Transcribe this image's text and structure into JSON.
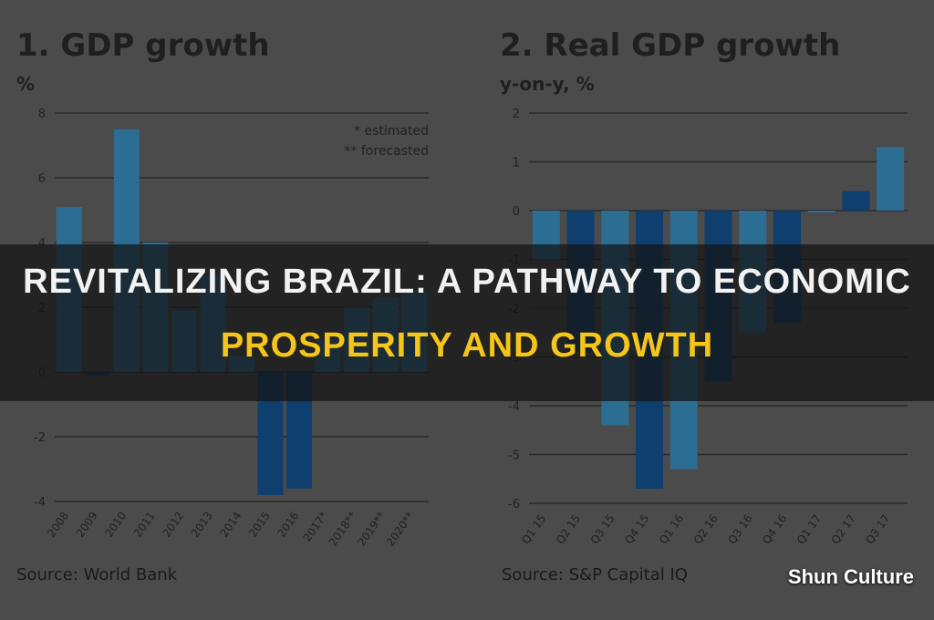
{
  "banner": {
    "line1": "REVITALIZING BRAZIL: A PATHWAY TO ECONOMIC",
    "line2": "PROSPERITY AND GROWTH"
  },
  "brand": "Shun Culture",
  "colors": {
    "background": "#4b4b4b",
    "bar_light": "#2c6d93",
    "bar_dark": "#0f3f6e",
    "banner_accent": "#f5c518"
  },
  "chart_data": [
    {
      "type": "bar",
      "title": "1. GDP growth",
      "ylabel": "%",
      "source": "Source: World Bank",
      "ylim": [
        -4,
        8
      ],
      "yticks": [
        8,
        6,
        4,
        2,
        0,
        -2,
        -4
      ],
      "grid": true,
      "legend": "top-right",
      "notes": [
        "* estimated",
        "** forecasted"
      ],
      "categories": [
        "2008",
        "2009",
        "2010",
        "2011",
        "2012",
        "2013",
        "2014",
        "2015",
        "2016",
        "2017*",
        "2018**",
        "2019**",
        "2020**"
      ],
      "values": [
        5.1,
        -0.1,
        7.5,
        4.0,
        1.9,
        3.0,
        0.5,
        -3.8,
        -3.6,
        1.0,
        2.0,
        2.3,
        2.5
      ]
    },
    {
      "type": "bar",
      "title": "2. Real GDP growth",
      "ylabel": "y-on-y, %",
      "source": "Source: S&P Capital IQ",
      "ylim": [
        -6,
        2
      ],
      "yticks": [
        2,
        1,
        0,
        -1,
        -2,
        -3,
        -4,
        -5,
        -6
      ],
      "grid": true,
      "categories": [
        "Q1 15",
        "Q2 15",
        "Q3 15",
        "Q4 15",
        "Q1 16",
        "Q2 16",
        "Q3 16",
        "Q4 16",
        "Q1 17",
        "Q2 17",
        "Q3 17"
      ],
      "values": [
        -1.0,
        -2.9,
        -4.4,
        -5.7,
        -5.3,
        -3.5,
        -2.5,
        -2.3,
        0.0,
        0.4,
        1.3
      ]
    }
  ]
}
